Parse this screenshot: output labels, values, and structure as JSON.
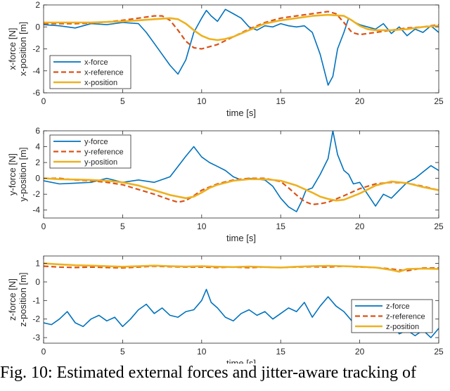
{
  "caption": "Fig. 10: Estimated external forces and jitter-aware tracking of",
  "colors": {
    "force": "#0072BD",
    "reference": "#D95319",
    "position": "#EDB120",
    "axis": "#262626",
    "grid": "#e6e6e6"
  },
  "chart_data": [
    {
      "type": "line",
      "id": "x",
      "title": "",
      "xlabel": "time [s]",
      "ylabel": [
        "x-force [N]",
        "x-position [m]"
      ],
      "xlim": [
        0,
        25
      ],
      "ylim": [
        -6,
        2
      ],
      "xticks": [
        0,
        5,
        10,
        15,
        20,
        25
      ],
      "yticks": [
        -6,
        -4,
        -2,
        0,
        2
      ],
      "grid": false,
      "legend": "left",
      "series": [
        {
          "name": "x-force",
          "style": "solid",
          "color": "#0072BD",
          "x": [
            0,
            1,
            2,
            3,
            4,
            5,
            6,
            6.5,
            7,
            7.5,
            8,
            8.5,
            9,
            9.5,
            10,
            10.3,
            10.6,
            11,
            11.5,
            12,
            12.5,
            13,
            13.5,
            14,
            14.5,
            15,
            15.5,
            16,
            16.5,
            17,
            17.5,
            18,
            18.3,
            18.6,
            19,
            19.3,
            19.6,
            20,
            20.5,
            21,
            21.5,
            22,
            22.5,
            23,
            23.5,
            24,
            24.5,
            25
          ],
          "y": [
            0.2,
            0.1,
            -0.1,
            0.3,
            0.2,
            0.4,
            0.3,
            -0.5,
            -1.5,
            -2.5,
            -3.5,
            -4.3,
            -3.0,
            -0.5,
            0.8,
            1.5,
            1.0,
            0.5,
            1.6,
            1.2,
            0.8,
            0.0,
            -0.3,
            0.1,
            0.0,
            0.3,
            0.1,
            0.0,
            0.1,
            -0.5,
            -2.5,
            -5.3,
            -4.5,
            -2.0,
            -0.5,
            0.8,
            0.5,
            0.2,
            0.0,
            -0.2,
            0.3,
            -0.6,
            0.0,
            -0.8,
            -0.2,
            -0.5,
            0.1,
            -0.5
          ]
        },
        {
          "name": "x-reference",
          "style": "dashed",
          "color": "#D95319",
          "x": [
            0,
            1,
            2,
            3,
            4,
            5,
            6,
            7,
            7.5,
            8,
            8.5,
            9,
            9.5,
            10,
            11,
            12,
            13,
            14,
            15,
            16,
            17,
            18,
            18.5,
            19,
            19.5,
            20,
            21,
            22,
            23,
            24,
            25
          ],
          "y": [
            0.3,
            0.3,
            0.3,
            0.35,
            0.45,
            0.6,
            0.8,
            1.0,
            1.0,
            0.6,
            -0.3,
            -1.3,
            -1.9,
            -2.0,
            -1.6,
            -0.9,
            -0.2,
            0.4,
            0.8,
            1.0,
            1.2,
            1.4,
            1.2,
            0.4,
            -0.5,
            -0.7,
            -0.5,
            -0.3,
            -0.1,
            0.0,
            0.2
          ]
        },
        {
          "name": "x-position",
          "style": "solid",
          "color": "#EDB120",
          "x": [
            0,
            1,
            2,
            3,
            4,
            5,
            6,
            7,
            8,
            8.5,
            9,
            9.5,
            10,
            10.5,
            11,
            11.5,
            12,
            12.5,
            13,
            14,
            15,
            16,
            17,
            18,
            19,
            19.5,
            20,
            20.5,
            21,
            22,
            23,
            24,
            25
          ],
          "y": [
            0.4,
            0.4,
            0.4,
            0.4,
            0.45,
            0.5,
            0.6,
            0.7,
            0.8,
            0.7,
            0.3,
            -0.3,
            -0.8,
            -1.1,
            -1.2,
            -1.1,
            -0.9,
            -0.6,
            -0.3,
            0.3,
            0.6,
            0.8,
            1.0,
            1.1,
            1.0,
            0.6,
            0.1,
            -0.2,
            -0.3,
            -0.3,
            -0.2,
            0.0,
            0.1
          ]
        }
      ]
    },
    {
      "type": "line",
      "id": "y",
      "title": "",
      "xlabel": "time [s]",
      "ylabel": [
        "y-force [N]",
        "y-position [m]"
      ],
      "xlim": [
        0,
        25
      ],
      "ylim": [
        -5,
        6
      ],
      "xticks": [
        0,
        5,
        10,
        15,
        20,
        25
      ],
      "yticks": [
        -4,
        -2,
        0,
        2,
        4,
        6
      ],
      "grid": false,
      "legend": "top-left",
      "series": [
        {
          "name": "y-force",
          "style": "solid",
          "color": "#0072BD",
          "x": [
            0,
            1,
            2,
            3,
            4,
            5,
            6,
            7,
            8,
            8.5,
            9,
            9.5,
            10,
            10.5,
            11,
            11.5,
            12,
            12.5,
            13,
            14,
            14.5,
            15,
            15.5,
            16,
            16.3,
            16.6,
            17,
            17.5,
            18,
            18.3,
            18.6,
            19,
            19.3,
            19.6,
            20,
            20.5,
            21,
            21.5,
            22,
            22.5,
            23,
            23.5,
            24,
            24.5,
            25
          ],
          "y": [
            -0.3,
            -0.7,
            -0.6,
            -0.5,
            0.0,
            -0.5,
            -0.2,
            -0.5,
            0.2,
            1.5,
            2.8,
            4.0,
            2.7,
            2.0,
            1.5,
            1.0,
            0.2,
            -0.2,
            0.0,
            -0.2,
            -1.0,
            -2.5,
            -3.6,
            -4.2,
            -3.0,
            -1.5,
            -1.2,
            0.5,
            2.5,
            6.0,
            3.0,
            1.0,
            0.5,
            -0.7,
            -0.5,
            -2.0,
            -3.5,
            -2.0,
            -2.5,
            -1.5,
            -0.5,
            0.0,
            0.8,
            1.6,
            1.0
          ]
        },
        {
          "name": "y-reference",
          "style": "dashed",
          "color": "#D95319",
          "x": [
            0,
            1,
            2,
            3,
            4,
            5,
            6,
            7,
            8,
            8.5,
            9,
            9.5,
            10,
            11,
            12,
            13,
            14,
            15,
            15.5,
            16,
            16.5,
            17,
            17.5,
            18,
            19,
            20,
            21,
            22,
            23,
            24,
            25
          ],
          "y": [
            0.0,
            0.0,
            -0.2,
            -0.3,
            -0.5,
            -0.8,
            -1.4,
            -2.0,
            -2.7,
            -3.0,
            -2.8,
            -2.2,
            -1.5,
            -0.7,
            -0.2,
            0.0,
            0.0,
            -0.4,
            -1.2,
            -2.1,
            -2.9,
            -3.3,
            -3.2,
            -3.0,
            -2.2,
            -1.3,
            -0.7,
            -0.5,
            -0.6,
            -1.0,
            -1.5
          ]
        },
        {
          "name": "y-position",
          "style": "solid",
          "color": "#EDB120",
          "x": [
            0,
            1,
            2,
            3,
            4,
            5,
            6,
            7,
            8,
            9,
            9.5,
            10,
            10.5,
            11,
            12,
            13,
            14,
            15,
            16,
            17,
            17.5,
            18,
            18.5,
            19,
            20,
            21,
            22,
            23,
            24,
            25
          ],
          "y": [
            0.0,
            -0.1,
            -0.15,
            -0.2,
            -0.3,
            -0.5,
            -0.9,
            -1.5,
            -2.1,
            -2.5,
            -2.3,
            -1.8,
            -1.2,
            -0.8,
            -0.3,
            -0.1,
            -0.1,
            -0.3,
            -0.9,
            -1.8,
            -2.3,
            -2.6,
            -2.8,
            -2.7,
            -1.9,
            -0.9,
            -0.4,
            -0.6,
            -1.1,
            -1.5
          ]
        }
      ]
    },
    {
      "type": "line",
      "id": "z",
      "title": "",
      "xlabel": "time [s]",
      "ylabel": [
        "z-force [N]",
        "z-position [m]"
      ],
      "xlim": [
        0,
        25
      ],
      "ylim": [
        -3.3,
        1.4
      ],
      "xticks": [
        0,
        5,
        10,
        15,
        20,
        25
      ],
      "yticks": [
        -3,
        -2,
        -1,
        0,
        1
      ],
      "grid": false,
      "legend": "bottom-right",
      "series": [
        {
          "name": "z-force",
          "style": "solid",
          "color": "#0072BD",
          "x": [
            0,
            0.5,
            1,
            1.5,
            2,
            2.5,
            3,
            3.5,
            4,
            4.5,
            5,
            5.5,
            6,
            6.5,
            7,
            7.5,
            8,
            8.5,
            9,
            9.5,
            10,
            10.3,
            10.6,
            11,
            11.5,
            12,
            12.5,
            13,
            13.5,
            14,
            14.5,
            15,
            15.5,
            16,
            16.5,
            17,
            17.5,
            18,
            18.5,
            19,
            19.5,
            20,
            20.5,
            21,
            21.5,
            22,
            22.5,
            23,
            23.5,
            24,
            24.5,
            25
          ],
          "y": [
            -2.2,
            -2.3,
            -2.0,
            -1.6,
            -2.2,
            -2.4,
            -2.0,
            -1.8,
            -2.1,
            -1.9,
            -2.4,
            -2.0,
            -1.5,
            -1.2,
            -1.7,
            -1.4,
            -1.8,
            -1.9,
            -1.6,
            -1.5,
            -1.0,
            -0.4,
            -1.1,
            -1.4,
            -1.9,
            -2.1,
            -1.7,
            -1.5,
            -1.8,
            -1.6,
            -2.0,
            -1.7,
            -1.4,
            -1.6,
            -1.1,
            -1.9,
            -1.3,
            -0.8,
            -1.3,
            -1.6,
            -2.1,
            -1.8,
            -2.5,
            -2.0,
            -2.6,
            -2.0,
            -2.8,
            -2.6,
            -2.9,
            -2.6,
            -3.0,
            -2.5
          ]
        },
        {
          "name": "z-reference",
          "style": "dashed",
          "color": "#D95319",
          "x": [
            0,
            1,
            2,
            3,
            4,
            5,
            6,
            7,
            8,
            9,
            10,
            11,
            12,
            13,
            14,
            15,
            16,
            17,
            18,
            19,
            20,
            21,
            22,
            23,
            24,
            25
          ],
          "y": [
            0.85,
            0.8,
            0.78,
            0.8,
            0.78,
            0.76,
            0.8,
            0.85,
            0.82,
            0.8,
            0.8,
            0.78,
            0.8,
            0.77,
            0.8,
            0.78,
            0.8,
            0.82,
            0.8,
            0.85,
            0.8,
            0.78,
            0.7,
            0.6,
            0.75,
            0.75
          ]
        },
        {
          "name": "z-position",
          "style": "solid",
          "color": "#EDB120",
          "x": [
            0,
            1,
            2,
            3,
            4,
            5,
            6,
            7,
            8,
            9,
            10,
            11,
            12,
            13,
            14,
            15,
            16,
            17,
            18,
            19,
            20,
            21,
            22,
            22.5,
            23,
            24,
            25
          ],
          "y": [
            1.0,
            0.95,
            0.9,
            0.88,
            0.85,
            0.82,
            0.85,
            0.88,
            0.85,
            0.83,
            0.85,
            0.82,
            0.8,
            0.83,
            0.8,
            0.78,
            0.82,
            0.85,
            0.87,
            0.85,
            0.82,
            0.78,
            0.65,
            0.55,
            0.7,
            0.72,
            0.7
          ]
        }
      ]
    }
  ]
}
